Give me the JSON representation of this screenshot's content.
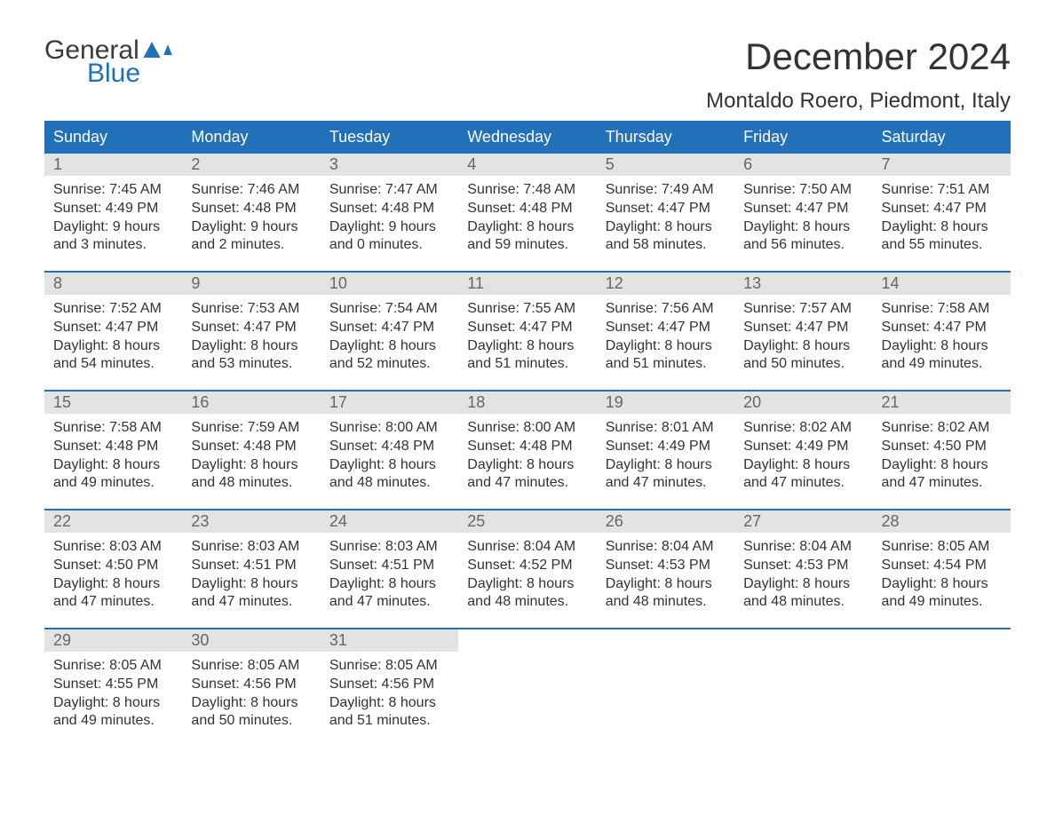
{
  "logo": {
    "text1": "General",
    "text2": "Blue",
    "accent_color": "#2270ba"
  },
  "header": {
    "month_title": "December 2024",
    "location": "Montaldo Roero, Piedmont, Italy"
  },
  "colors": {
    "header_bg": "#2270ba",
    "header_text": "#ffffff",
    "day_number_bg": "#e3e3e3",
    "day_number_text": "#666666",
    "body_text": "#333333",
    "week_divider": "#2270ba",
    "background": "#ffffff"
  },
  "fonts": {
    "family": "Arial, Helvetica, sans-serif",
    "month_title_size": 42,
    "location_size": 24,
    "day_header_size": 18,
    "day_number_size": 18,
    "cell_text_size": 16
  },
  "day_names": [
    "Sunday",
    "Monday",
    "Tuesday",
    "Wednesday",
    "Thursday",
    "Friday",
    "Saturday"
  ],
  "weeks": [
    [
      {
        "day": "1",
        "sunrise": "Sunrise: 7:45 AM",
        "sunset": "Sunset: 4:49 PM",
        "daylight1": "Daylight: 9 hours",
        "daylight2": "and 3 minutes."
      },
      {
        "day": "2",
        "sunrise": "Sunrise: 7:46 AM",
        "sunset": "Sunset: 4:48 PM",
        "daylight1": "Daylight: 9 hours",
        "daylight2": "and 2 minutes."
      },
      {
        "day": "3",
        "sunrise": "Sunrise: 7:47 AM",
        "sunset": "Sunset: 4:48 PM",
        "daylight1": "Daylight: 9 hours",
        "daylight2": "and 0 minutes."
      },
      {
        "day": "4",
        "sunrise": "Sunrise: 7:48 AM",
        "sunset": "Sunset: 4:48 PM",
        "daylight1": "Daylight: 8 hours",
        "daylight2": "and 59 minutes."
      },
      {
        "day": "5",
        "sunrise": "Sunrise: 7:49 AM",
        "sunset": "Sunset: 4:47 PM",
        "daylight1": "Daylight: 8 hours",
        "daylight2": "and 58 minutes."
      },
      {
        "day": "6",
        "sunrise": "Sunrise: 7:50 AM",
        "sunset": "Sunset: 4:47 PM",
        "daylight1": "Daylight: 8 hours",
        "daylight2": "and 56 minutes."
      },
      {
        "day": "7",
        "sunrise": "Sunrise: 7:51 AM",
        "sunset": "Sunset: 4:47 PM",
        "daylight1": "Daylight: 8 hours",
        "daylight2": "and 55 minutes."
      }
    ],
    [
      {
        "day": "8",
        "sunrise": "Sunrise: 7:52 AM",
        "sunset": "Sunset: 4:47 PM",
        "daylight1": "Daylight: 8 hours",
        "daylight2": "and 54 minutes."
      },
      {
        "day": "9",
        "sunrise": "Sunrise: 7:53 AM",
        "sunset": "Sunset: 4:47 PM",
        "daylight1": "Daylight: 8 hours",
        "daylight2": "and 53 minutes."
      },
      {
        "day": "10",
        "sunrise": "Sunrise: 7:54 AM",
        "sunset": "Sunset: 4:47 PM",
        "daylight1": "Daylight: 8 hours",
        "daylight2": "and 52 minutes."
      },
      {
        "day": "11",
        "sunrise": "Sunrise: 7:55 AM",
        "sunset": "Sunset: 4:47 PM",
        "daylight1": "Daylight: 8 hours",
        "daylight2": "and 51 minutes."
      },
      {
        "day": "12",
        "sunrise": "Sunrise: 7:56 AM",
        "sunset": "Sunset: 4:47 PM",
        "daylight1": "Daylight: 8 hours",
        "daylight2": "and 51 minutes."
      },
      {
        "day": "13",
        "sunrise": "Sunrise: 7:57 AM",
        "sunset": "Sunset: 4:47 PM",
        "daylight1": "Daylight: 8 hours",
        "daylight2": "and 50 minutes."
      },
      {
        "day": "14",
        "sunrise": "Sunrise: 7:58 AM",
        "sunset": "Sunset: 4:47 PM",
        "daylight1": "Daylight: 8 hours",
        "daylight2": "and 49 minutes."
      }
    ],
    [
      {
        "day": "15",
        "sunrise": "Sunrise: 7:58 AM",
        "sunset": "Sunset: 4:48 PM",
        "daylight1": "Daylight: 8 hours",
        "daylight2": "and 49 minutes."
      },
      {
        "day": "16",
        "sunrise": "Sunrise: 7:59 AM",
        "sunset": "Sunset: 4:48 PM",
        "daylight1": "Daylight: 8 hours",
        "daylight2": "and 48 minutes."
      },
      {
        "day": "17",
        "sunrise": "Sunrise: 8:00 AM",
        "sunset": "Sunset: 4:48 PM",
        "daylight1": "Daylight: 8 hours",
        "daylight2": "and 48 minutes."
      },
      {
        "day": "18",
        "sunrise": "Sunrise: 8:00 AM",
        "sunset": "Sunset: 4:48 PM",
        "daylight1": "Daylight: 8 hours",
        "daylight2": "and 47 minutes."
      },
      {
        "day": "19",
        "sunrise": "Sunrise: 8:01 AM",
        "sunset": "Sunset: 4:49 PM",
        "daylight1": "Daylight: 8 hours",
        "daylight2": "and 47 minutes."
      },
      {
        "day": "20",
        "sunrise": "Sunrise: 8:02 AM",
        "sunset": "Sunset: 4:49 PM",
        "daylight1": "Daylight: 8 hours",
        "daylight2": "and 47 minutes."
      },
      {
        "day": "21",
        "sunrise": "Sunrise: 8:02 AM",
        "sunset": "Sunset: 4:50 PM",
        "daylight1": "Daylight: 8 hours",
        "daylight2": "and 47 minutes."
      }
    ],
    [
      {
        "day": "22",
        "sunrise": "Sunrise: 8:03 AM",
        "sunset": "Sunset: 4:50 PM",
        "daylight1": "Daylight: 8 hours",
        "daylight2": "and 47 minutes."
      },
      {
        "day": "23",
        "sunrise": "Sunrise: 8:03 AM",
        "sunset": "Sunset: 4:51 PM",
        "daylight1": "Daylight: 8 hours",
        "daylight2": "and 47 minutes."
      },
      {
        "day": "24",
        "sunrise": "Sunrise: 8:03 AM",
        "sunset": "Sunset: 4:51 PM",
        "daylight1": "Daylight: 8 hours",
        "daylight2": "and 47 minutes."
      },
      {
        "day": "25",
        "sunrise": "Sunrise: 8:04 AM",
        "sunset": "Sunset: 4:52 PM",
        "daylight1": "Daylight: 8 hours",
        "daylight2": "and 48 minutes."
      },
      {
        "day": "26",
        "sunrise": "Sunrise: 8:04 AM",
        "sunset": "Sunset: 4:53 PM",
        "daylight1": "Daylight: 8 hours",
        "daylight2": "and 48 minutes."
      },
      {
        "day": "27",
        "sunrise": "Sunrise: 8:04 AM",
        "sunset": "Sunset: 4:53 PM",
        "daylight1": "Daylight: 8 hours",
        "daylight2": "and 48 minutes."
      },
      {
        "day": "28",
        "sunrise": "Sunrise: 8:05 AM",
        "sunset": "Sunset: 4:54 PM",
        "daylight1": "Daylight: 8 hours",
        "daylight2": "and 49 minutes."
      }
    ],
    [
      {
        "day": "29",
        "sunrise": "Sunrise: 8:05 AM",
        "sunset": "Sunset: 4:55 PM",
        "daylight1": "Daylight: 8 hours",
        "daylight2": "and 49 minutes."
      },
      {
        "day": "30",
        "sunrise": "Sunrise: 8:05 AM",
        "sunset": "Sunset: 4:56 PM",
        "daylight1": "Daylight: 8 hours",
        "daylight2": "and 50 minutes."
      },
      {
        "day": "31",
        "sunrise": "Sunrise: 8:05 AM",
        "sunset": "Sunset: 4:56 PM",
        "daylight1": "Daylight: 8 hours",
        "daylight2": "and 51 minutes."
      },
      {
        "day": "",
        "sunrise": "",
        "sunset": "",
        "daylight1": "",
        "daylight2": ""
      },
      {
        "day": "",
        "sunrise": "",
        "sunset": "",
        "daylight1": "",
        "daylight2": ""
      },
      {
        "day": "",
        "sunrise": "",
        "sunset": "",
        "daylight1": "",
        "daylight2": ""
      },
      {
        "day": "",
        "sunrise": "",
        "sunset": "",
        "daylight1": "",
        "daylight2": ""
      }
    ]
  ]
}
